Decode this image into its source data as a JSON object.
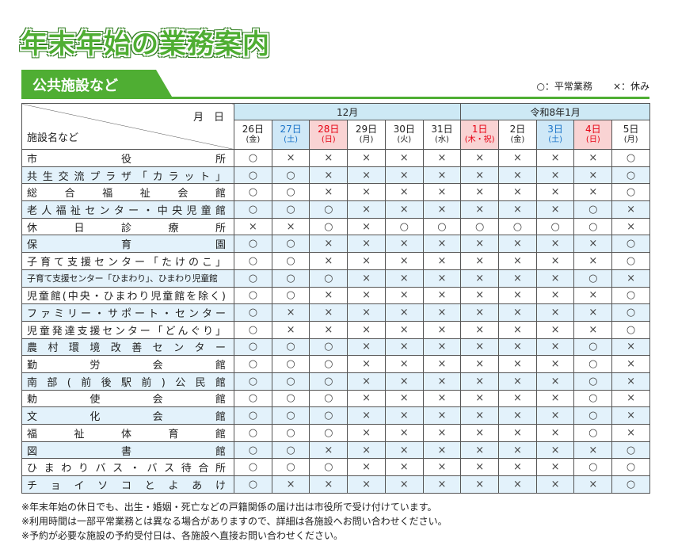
{
  "header": {
    "title": "年末年始の業務案内"
  },
  "section": {
    "title": "公共施設など"
  },
  "legend": [
    "○：平常業務",
    "×：休み"
  ],
  "table": {
    "corner_top": "月　日",
    "corner_bottom": "施設名など",
    "months": [
      {
        "label": "12月",
        "span": 6
      },
      {
        "label": "令和8年1月",
        "span": 5
      }
    ],
    "days": [
      {
        "day": "26日",
        "weekday": "(金)",
        "color": "#222222",
        "bg": "#ffffff"
      },
      {
        "day": "27日",
        "weekday": "(土)",
        "color": "#1a73c8",
        "bg": "#cfe8f7"
      },
      {
        "day": "28日",
        "weekday": "(日)",
        "color": "#e60012",
        "bg": "#f9d3d3"
      },
      {
        "day": "29日",
        "weekday": "(月)",
        "color": "#222222",
        "bg": "#ffffff"
      },
      {
        "day": "30日",
        "weekday": "(火)",
        "color": "#222222",
        "bg": "#ffffff"
      },
      {
        "day": "31日",
        "weekday": "(水)",
        "color": "#222222",
        "bg": "#ffffff"
      },
      {
        "day": "1日",
        "weekday": "(木・祝)",
        "color": "#e60012",
        "bg": "#f9d3d3"
      },
      {
        "day": "2日",
        "weekday": "(金)",
        "color": "#222222",
        "bg": "#ffffff"
      },
      {
        "day": "3日",
        "weekday": "(土)",
        "color": "#1a73c8",
        "bg": "#cfe8f7"
      },
      {
        "day": "4日",
        "weekday": "(日)",
        "color": "#e60012",
        "bg": "#f9d3d3"
      },
      {
        "day": "5日",
        "weekday": "(月)",
        "color": "#222222",
        "bg": "#ffffff"
      }
    ],
    "rows": [
      {
        "name": "市役所",
        "values": [
          "○",
          "×",
          "×",
          "×",
          "×",
          "×",
          "×",
          "×",
          "×",
          "×",
          "○"
        ]
      },
      {
        "name": "共生交流プラザ「カラット」",
        "values": [
          "○",
          "○",
          "×",
          "×",
          "×",
          "×",
          "×",
          "×",
          "×",
          "×",
          "○"
        ]
      },
      {
        "name": "総合福祉会館",
        "values": [
          "○",
          "○",
          "×",
          "×",
          "×",
          "×",
          "×",
          "×",
          "×",
          "×",
          "○"
        ]
      },
      {
        "name": "老人福祉センター・中央児童館",
        "values": [
          "○",
          "○",
          "○",
          "×",
          "×",
          "×",
          "×",
          "×",
          "×",
          "○",
          "×"
        ]
      },
      {
        "name": "休日診療所",
        "values": [
          "×",
          "×",
          "○",
          "×",
          "○",
          "○",
          "○",
          "○",
          "○",
          "○",
          "×"
        ]
      },
      {
        "name": "保育園",
        "values": [
          "○",
          "○",
          "×",
          "×",
          "×",
          "×",
          "×",
          "×",
          "×",
          "×",
          "○"
        ]
      },
      {
        "name": "子育て支援センター「たけのこ」",
        "values": [
          "○",
          "○",
          "×",
          "×",
          "×",
          "×",
          "×",
          "×",
          "×",
          "×",
          "○"
        ]
      },
      {
        "name": "子育て支援センター「ひまわり」、ひまわり児童館",
        "values": [
          "○",
          "○",
          "○",
          "×",
          "×",
          "×",
          "×",
          "×",
          "×",
          "○",
          "×"
        ]
      },
      {
        "name": "児童館(中央・ひまわり児童館を除く)",
        "values": [
          "○",
          "○",
          "×",
          "×",
          "×",
          "×",
          "×",
          "×",
          "×",
          "×",
          "○"
        ]
      },
      {
        "name": "ファミリー・サポート・センター",
        "values": [
          "○",
          "×",
          "×",
          "×",
          "×",
          "×",
          "×",
          "×",
          "×",
          "×",
          "○"
        ]
      },
      {
        "name": "児童発達支援センター「どんぐり」",
        "values": [
          "○",
          "×",
          "×",
          "×",
          "×",
          "×",
          "×",
          "×",
          "×",
          "×",
          "○"
        ]
      },
      {
        "name": "農村環境改善センター",
        "values": [
          "○",
          "○",
          "○",
          "×",
          "×",
          "×",
          "×",
          "×",
          "×",
          "○",
          "×"
        ]
      },
      {
        "name": "勤労会館",
        "values": [
          "○",
          "○",
          "○",
          "×",
          "×",
          "×",
          "×",
          "×",
          "×",
          "○",
          "×"
        ]
      },
      {
        "name": "南部(前後駅前)公民館",
        "values": [
          "○",
          "○",
          "○",
          "×",
          "×",
          "×",
          "×",
          "×",
          "×",
          "○",
          "×"
        ]
      },
      {
        "name": "勅使会館",
        "values": [
          "○",
          "○",
          "○",
          "×",
          "×",
          "×",
          "×",
          "×",
          "×",
          "○",
          "×"
        ]
      },
      {
        "name": "文化会館",
        "values": [
          "○",
          "○",
          "○",
          "×",
          "×",
          "×",
          "×",
          "×",
          "×",
          "○",
          "×"
        ]
      },
      {
        "name": "福祉体育館",
        "values": [
          "○",
          "○",
          "○",
          "×",
          "×",
          "×",
          "×",
          "×",
          "×",
          "○",
          "×"
        ]
      },
      {
        "name": "図書館",
        "values": [
          "○",
          "○",
          "×",
          "×",
          "×",
          "×",
          "×",
          "×",
          "×",
          "×",
          "○"
        ]
      },
      {
        "name": "ひまわりバス・バス待合所",
        "values": [
          "○",
          "○",
          "○",
          "×",
          "×",
          "×",
          "×",
          "×",
          "×",
          "○",
          "○"
        ]
      },
      {
        "name": "チョイソコとよあけ",
        "values": [
          "○",
          "×",
          "×",
          "×",
          "×",
          "×",
          "×",
          "×",
          "×",
          "×",
          "○"
        ]
      }
    ]
  },
  "notes": [
    "※年末年始の休日でも、出生・婚姻・死亡などの戸籍関係の届け出は市役所で受け付けています。",
    "※利用時間は一部平常業務とは異なる場合がありますので、詳細は各施設へお問い合わせください。",
    "※予約が必要な施設の予約受付日は、各施設へ直接お問い合わせください。"
  ]
}
